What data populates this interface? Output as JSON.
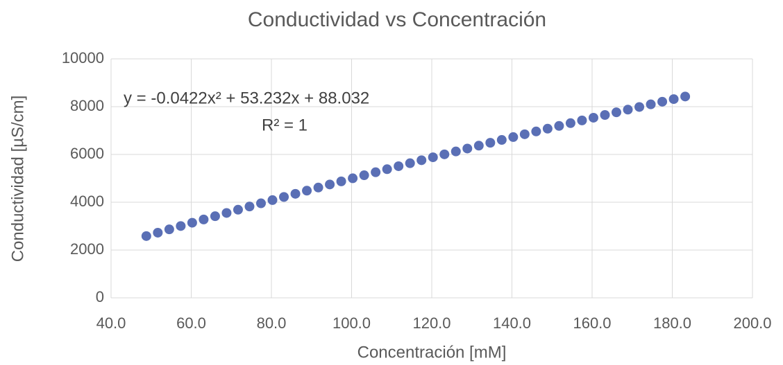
{
  "chart_data": {
    "type": "scatter",
    "title": "Conductividad vs Concentración",
    "x_label": "Concentración [mM]",
    "y_label": "Conductividad [µS/cm]",
    "annotations": [
      "y = -0.0422x² + 53.232x + 88.032",
      "R² = 1"
    ],
    "series": [
      {
        "name": "Conductividad",
        "color": "#5a6fb5",
        "x": [
          48.8,
          51.66,
          54.52,
          57.38,
          60.24,
          63.1,
          65.96,
          68.82,
          71.68,
          74.54,
          77.4,
          80.26,
          83.12,
          85.98,
          88.84,
          91.7,
          94.56,
          97.42,
          100.28,
          103.14,
          106.0,
          108.86,
          111.72,
          114.58,
          117.44,
          120.3,
          123.16,
          126.02,
          128.88,
          131.74,
          134.6,
          137.46,
          140.32,
          143.18,
          146.04,
          148.9,
          151.76,
          154.62,
          157.48,
          160.34,
          163.2,
          166.06,
          168.92,
          171.78,
          174.64,
          177.5,
          180.36,
          183.22
        ],
        "values": [
          2585,
          2725,
          2865,
          3004,
          3142,
          3279,
          3416,
          3552,
          3687,
          3821,
          3955,
          4089,
          4221,
          4353,
          4484,
          4615,
          4744,
          4873,
          5002,
          5129,
          5256,
          5383,
          5508,
          5633,
          5758,
          5881,
          6004,
          6126,
          6248,
          6368,
          6489,
          6608,
          6727,
          6845,
          6962,
          7079,
          7195,
          7310,
          7424,
          7538,
          7652,
          7764,
          7876,
          7987,
          8097,
          8207,
          8316,
          8425
        ]
      }
    ],
    "xlim": [
      40,
      200
    ],
    "xticks": [
      {
        "value": 40,
        "label": "40.0"
      },
      {
        "value": 60,
        "label": "60.0"
      },
      {
        "value": 80,
        "label": "80.0"
      },
      {
        "value": 100,
        "label": "100.0"
      },
      {
        "value": 120,
        "label": "120.0"
      },
      {
        "value": 140,
        "label": "140.0"
      },
      {
        "value": 160,
        "label": "160.0"
      },
      {
        "value": 180,
        "label": "180.0"
      },
      {
        "value": 200,
        "label": "200.0"
      }
    ],
    "ylim": [
      0,
      10000
    ],
    "yticks": [
      0,
      2000,
      4000,
      6000,
      8000,
      10000
    ],
    "grid": true
  }
}
